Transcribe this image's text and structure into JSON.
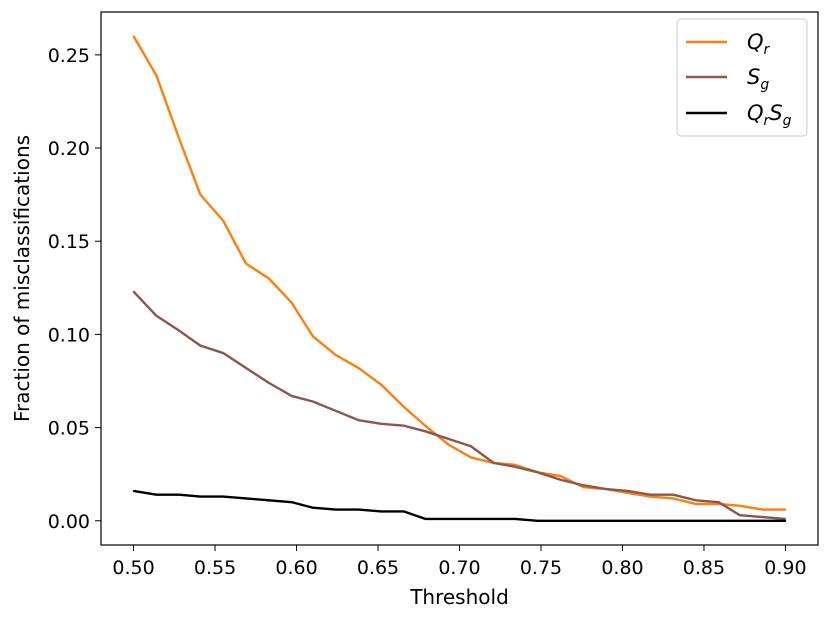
{
  "chart_data": {
    "type": "line",
    "title": "",
    "xlabel": "Threshold",
    "ylabel": "Fraction of misclassifications",
    "xlim": [
      0.5,
      0.9
    ],
    "ylim": [
      0.0,
      0.26
    ],
    "xticks": [
      "0.50",
      "0.55",
      "0.60",
      "0.65",
      "0.70",
      "0.75",
      "0.80",
      "0.85",
      "0.90"
    ],
    "yticks": [
      "0.00",
      "0.05",
      "0.10",
      "0.15",
      "0.20",
      "0.25"
    ],
    "grid": false,
    "legend_position": "top-right",
    "x": [
      0.5,
      0.514,
      0.528,
      0.541,
      0.555,
      0.569,
      0.583,
      0.597,
      0.61,
      0.624,
      0.638,
      0.652,
      0.666,
      0.679,
      0.693,
      0.707,
      0.721,
      0.734,
      0.748,
      0.762,
      0.776,
      0.79,
      0.803,
      0.817,
      0.831,
      0.845,
      0.859,
      0.872,
      0.886,
      0.9
    ],
    "series": [
      {
        "name": "Q_r",
        "legend_main": "Q",
        "legend_sub": "r",
        "color": "#ff7f0e",
        "values": [
          0.26,
          0.239,
          0.205,
          0.175,
          0.161,
          0.138,
          0.13,
          0.117,
          0.099,
          0.089,
          0.082,
          0.073,
          0.061,
          0.051,
          0.041,
          0.034,
          0.031,
          0.03,
          0.026,
          0.024,
          0.018,
          0.017,
          0.015,
          0.013,
          0.012,
          0.009,
          0.009,
          0.008,
          0.006,
          0.006
        ]
      },
      {
        "name": "S_g",
        "legend_main": "S",
        "legend_sub": "g",
        "color": "#8c564b",
        "values": [
          0.123,
          0.11,
          0.102,
          0.094,
          0.09,
          0.082,
          0.074,
          0.067,
          0.064,
          0.059,
          0.054,
          0.052,
          0.051,
          0.048,
          0.044,
          0.04,
          0.031,
          0.029,
          0.026,
          0.022,
          0.019,
          0.017,
          0.016,
          0.014,
          0.014,
          0.011,
          0.01,
          0.003,
          0.002,
          0.001
        ]
      },
      {
        "name": "Q_rS_g",
        "legend_main": "Q",
        "legend_sub": "r",
        "legend_main2": "S",
        "legend_sub2": "g",
        "color": "#000000",
        "values": [
          0.016,
          0.014,
          0.014,
          0.013,
          0.013,
          0.012,
          0.011,
          0.01,
          0.007,
          0.006,
          0.006,
          0.005,
          0.005,
          0.001,
          0.001,
          0.001,
          0.001,
          0.001,
          0.0,
          0.0,
          0.0,
          0.0,
          0.0,
          0.0,
          0.0,
          0.0,
          0.0,
          0.0,
          0.0,
          0.0
        ]
      }
    ]
  }
}
